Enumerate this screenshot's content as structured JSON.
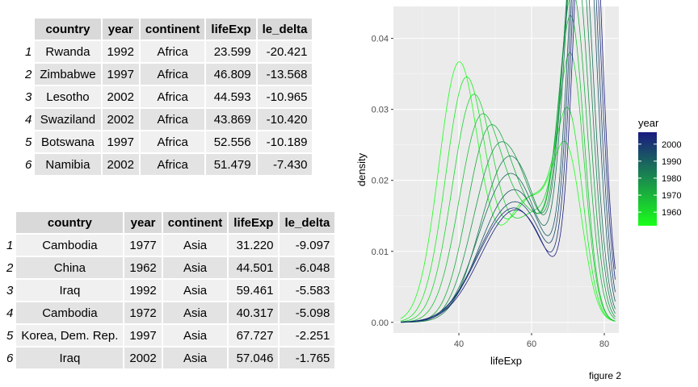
{
  "table1": {
    "headers": [
      "country",
      "year",
      "continent",
      "lifeExp",
      "le_delta"
    ],
    "rows": [
      {
        "n": "1",
        "country": "Rwanda",
        "year": "1992",
        "continent": "Africa",
        "lifeExp": "23.599",
        "le_delta": "-20.421"
      },
      {
        "n": "2",
        "country": "Zimbabwe",
        "year": "1997",
        "continent": "Africa",
        "lifeExp": "46.809",
        "le_delta": "-13.568"
      },
      {
        "n": "3",
        "country": "Lesotho",
        "year": "2002",
        "continent": "Africa",
        "lifeExp": "44.593",
        "le_delta": "-10.965"
      },
      {
        "n": "4",
        "country": "Swaziland",
        "year": "2002",
        "continent": "Africa",
        "lifeExp": "43.869",
        "le_delta": "-10.420"
      },
      {
        "n": "5",
        "country": "Botswana",
        "year": "1997",
        "continent": "Africa",
        "lifeExp": "52.556",
        "le_delta": "-10.189"
      },
      {
        "n": "6",
        "country": "Namibia",
        "year": "2002",
        "continent": "Africa",
        "lifeExp": "51.479",
        "le_delta": "-7.430"
      }
    ]
  },
  "table2": {
    "headers": [
      "country",
      "year",
      "continent",
      "lifeExp",
      "le_delta"
    ],
    "rows": [
      {
        "n": "1",
        "country": "Cambodia",
        "year": "1977",
        "continent": "Asia",
        "lifeExp": "31.220",
        "le_delta": "-9.097"
      },
      {
        "n": "2",
        "country": "China",
        "year": "1962",
        "continent": "Asia",
        "lifeExp": "44.501",
        "le_delta": "-6.048"
      },
      {
        "n": "3",
        "country": "Iraq",
        "year": "1992",
        "continent": "Asia",
        "lifeExp": "59.461",
        "le_delta": "-5.583"
      },
      {
        "n": "4",
        "country": "Cambodia",
        "year": "1972",
        "continent": "Asia",
        "lifeExp": "40.317",
        "le_delta": "-5.098"
      },
      {
        "n": "5",
        "country": "Korea, Dem. Rep.",
        "year": "1997",
        "continent": "Asia",
        "lifeExp": "67.727",
        "le_delta": "-2.251"
      },
      {
        "n": "6",
        "country": "Iraq",
        "year": "2002",
        "continent": "Asia",
        "lifeExp": "57.046",
        "le_delta": "-1.765"
      }
    ]
  },
  "chart_data": {
    "type": "line",
    "xlabel": "lifeExp",
    "ylabel": "density",
    "xlim": [
      22,
      84
    ],
    "ylim": [
      -0.0015,
      0.0445
    ],
    "x_ticks": [
      40,
      60,
      80
    ],
    "y_ticks": [
      0.0,
      0.01,
      0.02,
      0.03,
      0.04
    ],
    "y_tick_labels": [
      "0.00",
      "0.01",
      "0.02",
      "0.03",
      "0.04"
    ],
    "grid": true,
    "panel_background": "#ebebeb",
    "legend": {
      "title": "year",
      "position": "right",
      "type": "colorbar",
      "low_color": "#1aff1a",
      "high_color": "#1a1a80",
      "range": [
        1952,
        2007
      ],
      "breaks": [
        1960,
        1970,
        1980,
        1990,
        2000
      ]
    },
    "series": [
      {
        "year": 1952,
        "peaks": [
          {
            "mu": 40.0,
            "sd": 5.5,
            "w": 0.5
          },
          {
            "mu": 59.0,
            "sd": 7.0,
            "w": 0.3
          },
          {
            "mu": 70.0,
            "sd": 4.0,
            "w": 0.2
          }
        ]
      },
      {
        "year": 1957,
        "peaks": [
          {
            "mu": 42.0,
            "sd": 5.6,
            "w": 0.48
          },
          {
            "mu": 60.0,
            "sd": 6.5,
            "w": 0.28
          },
          {
            "mu": 70.5,
            "sd": 3.8,
            "w": 0.24
          }
        ]
      },
      {
        "year": 1962,
        "peaks": [
          {
            "mu": 44.0,
            "sd": 5.8,
            "w": 0.46
          },
          {
            "mu": 61.0,
            "sd": 6.5,
            "w": 0.24
          },
          {
            "mu": 71.0,
            "sd": 3.6,
            "w": 0.3
          }
        ]
      },
      {
        "year": 1967,
        "peaks": [
          {
            "mu": 46.0,
            "sd": 6.0,
            "w": 0.42
          },
          {
            "mu": 60.0,
            "sd": 6.5,
            "w": 0.22
          },
          {
            "mu": 71.0,
            "sd": 3.6,
            "w": 0.36
          }
        ]
      },
      {
        "year": 1972,
        "peaks": [
          {
            "mu": 48.0,
            "sd": 6.0,
            "w": 0.38
          },
          {
            "mu": 60.0,
            "sd": 6.5,
            "w": 0.2
          },
          {
            "mu": 71.5,
            "sd": 3.8,
            "w": 0.42
          }
        ]
      },
      {
        "year": 1977,
        "peaks": [
          {
            "mu": 50.0,
            "sd": 6.5,
            "w": 0.36
          },
          {
            "mu": 60.0,
            "sd": 6.0,
            "w": 0.16
          },
          {
            "mu": 72.0,
            "sd": 3.8,
            "w": 0.48
          }
        ]
      },
      {
        "year": 1982,
        "peaks": [
          {
            "mu": 52.0,
            "sd": 7.0,
            "w": 0.34
          },
          {
            "mu": 60.0,
            "sd": 6.0,
            "w": 0.12
          },
          {
            "mu": 72.5,
            "sd": 3.8,
            "w": 0.54
          }
        ]
      },
      {
        "year": 1987,
        "peaks": [
          {
            "mu": 52.0,
            "sd": 7.5,
            "w": 0.33
          },
          {
            "mu": 60.0,
            "sd": 6.0,
            "w": 0.1
          },
          {
            "mu": 73.0,
            "sd": 3.8,
            "w": 0.57
          }
        ]
      },
      {
        "year": 1992,
        "peaks": [
          {
            "mu": 53.0,
            "sd": 8.0,
            "w": 0.32
          },
          {
            "mu": 61.0,
            "sd": 6.0,
            "w": 0.08
          },
          {
            "mu": 74.0,
            "sd": 3.6,
            "w": 0.6
          }
        ]
      },
      {
        "year": 1997,
        "peaks": [
          {
            "mu": 53.0,
            "sd": 8.5,
            "w": 0.31
          },
          {
            "mu": 61.0,
            "sd": 6.0,
            "w": 0.07
          },
          {
            "mu": 74.5,
            "sd": 3.6,
            "w": 0.62
          }
        ]
      },
      {
        "year": 2002,
        "peaks": [
          {
            "mu": 53.0,
            "sd": 8.5,
            "w": 0.3
          },
          {
            "mu": 61.0,
            "sd": 6.0,
            "w": 0.06
          },
          {
            "mu": 75.0,
            "sd": 3.6,
            "w": 0.64
          }
        ]
      },
      {
        "year": 2007,
        "peaks": [
          {
            "mu": 53.5,
            "sd": 8.5,
            "w": 0.29
          },
          {
            "mu": 61.0,
            "sd": 6.0,
            "w": 0.06
          },
          {
            "mu": 75.5,
            "sd": 3.5,
            "w": 0.65
          }
        ]
      }
    ]
  },
  "caption": "figure 2"
}
